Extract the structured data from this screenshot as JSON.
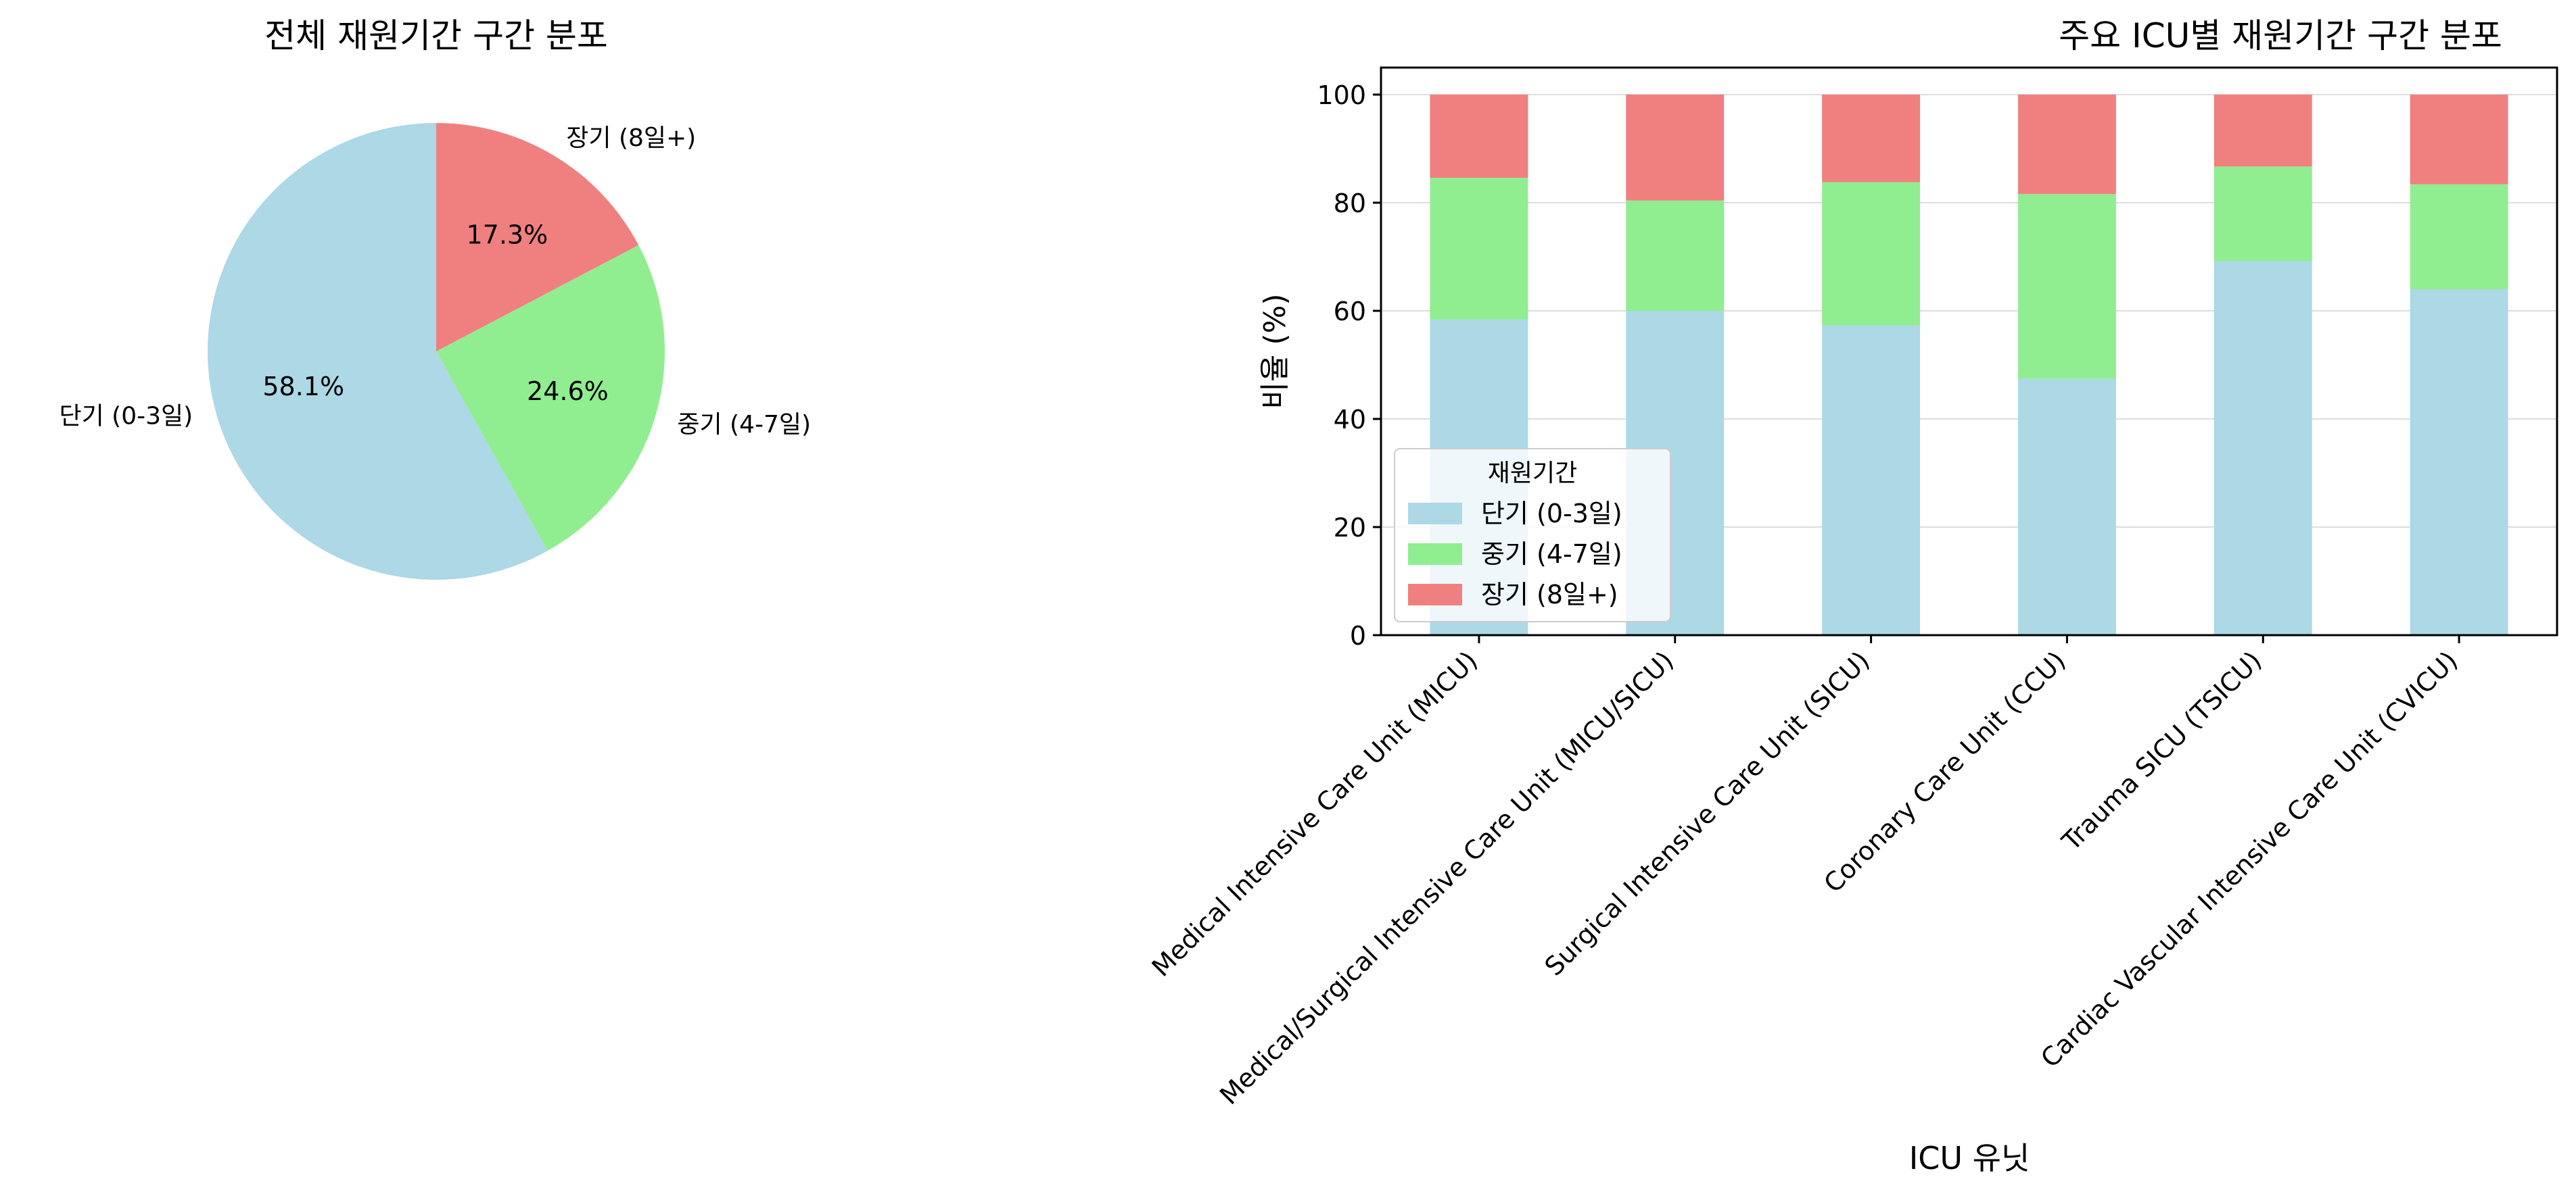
{
  "colors": {
    "short": "#ADD8E6",
    "mid": "#90EE90",
    "long": "#F08080",
    "axis": "#000000",
    "grid": "#DDDDDD"
  },
  "chart_data": [
    {
      "type": "pie",
      "title": "전체 재원기간 구간 분포",
      "labels": [
        "단기 (0-3일)",
        "중기 (4-7일)",
        "장기 (8일+)"
      ],
      "values": [
        58.1,
        24.6,
        17.3
      ],
      "autopct_labels": [
        "58.1%",
        "24.6%",
        "17.3%"
      ],
      "start_angle_deg": 90,
      "direction": "counterclockwise"
    },
    {
      "type": "bar",
      "stacked": true,
      "title": "주요 ICU별 재원기간 구간 분포",
      "xlabel": "ICU 유닛",
      "ylabel": "비율 (%)",
      "ylim": [
        0,
        105
      ],
      "yticks": [
        0,
        20,
        40,
        60,
        80,
        100
      ],
      "grid": "y",
      "categories": [
        "Medical Intensive Care Unit (MICU)",
        "Medical/Surgical Intensive Care Unit (MICU/SICU)",
        "Surgical Intensive Care Unit (SICU)",
        "Coronary Care Unit (CCU)",
        "Trauma SICU (TSICU)",
        "Cardiac Vascular Intensive Care Unit (CVICU)"
      ],
      "series": [
        {
          "name": "단기 (0-3일)",
          "values": [
            58.4,
            60.0,
            57.3,
            47.4,
            69.2,
            64.0
          ]
        },
        {
          "name": "중기 (4-7일)",
          "values": [
            26.2,
            20.4,
            26.5,
            34.2,
            17.5,
            19.4
          ]
        },
        {
          "name": "장기 (8일+)",
          "values": [
            15.4,
            19.6,
            16.2,
            18.4,
            13.3,
            16.6
          ]
        }
      ],
      "legend": {
        "title": "재원기간",
        "position": "lower-left"
      }
    }
  ]
}
